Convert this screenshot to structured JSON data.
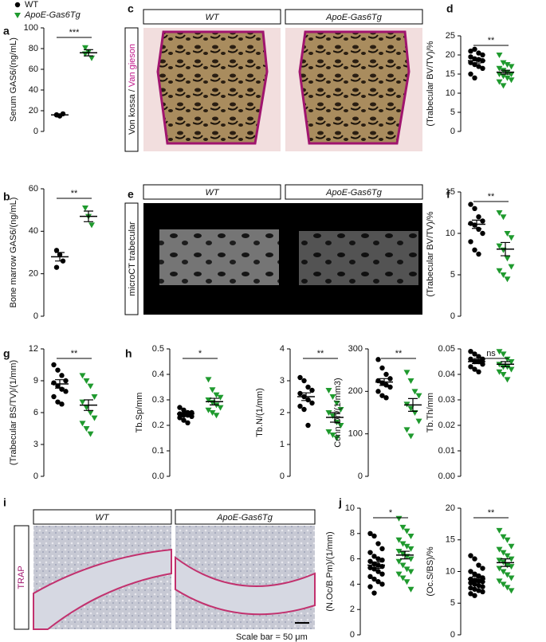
{
  "chart_data": [
    {
      "type": "dotplot",
      "panel": "a",
      "legend": "top-left",
      "ylabel": "Serum GAS6/(ng/mL)",
      "ylim": [
        0,
        100
      ],
      "yticks": [
        0,
        20,
        40,
        60,
        80,
        100
      ],
      "significance": "***",
      "series": [
        {
          "name": "WT",
          "color": "#000000",
          "marker": "circle",
          "values": [
            16,
            15,
            17,
            16,
            15
          ],
          "mean": 16,
          "sem": 0.5
        },
        {
          "name": "ApoE-Gas6Tg",
          "color": "#1f9a2e",
          "marker": "triangle",
          "values": [
            81,
            77,
            71,
            75
          ],
          "mean": 76,
          "sem": 3
        }
      ]
    },
    {
      "type": "dotplot",
      "panel": "b",
      "ylabel": "Bone marrow GAS6/(ng/mL)",
      "ylim": [
        0,
        60
      ],
      "yticks": [
        0,
        20,
        40,
        60
      ],
      "significance": "**",
      "series": [
        {
          "color": "#000000",
          "marker": "circle",
          "values": [
            31,
            29,
            26,
            23
          ],
          "mean": 28,
          "sem": 2
        },
        {
          "color": "#1f9a2e",
          "marker": "triangle",
          "values": [
            51,
            47,
            43
          ],
          "mean": 47,
          "sem": 2.5
        }
      ]
    },
    {
      "type": "dotplot",
      "panel": "d",
      "ylabel": "(Trabecular BV/TV)/%",
      "ylim": [
        0,
        25
      ],
      "yticks": [
        0,
        5,
        10,
        15,
        20,
        25
      ],
      "significance": "**",
      "series": [
        {
          "color": "#000000",
          "marker": "circle",
          "values": [
            21,
            21.5,
            20.5,
            20,
            19.5,
            19,
            18.8,
            18.5,
            18,
            17.5,
            17,
            16.5,
            15,
            14
          ],
          "mean": 18.5,
          "sem": 0.6
        },
        {
          "color": "#1f9a2e",
          "marker": "triangle",
          "values": [
            20,
            18,
            17.5,
            17,
            16.5,
            16,
            15.5,
            15,
            15,
            14.5,
            14,
            13.5,
            13,
            12
          ],
          "mean": 15.5,
          "sem": 0.5
        }
      ]
    },
    {
      "type": "dotplot",
      "panel": "f",
      "ylabel": "(Trabecular BV/TV)/%",
      "ylim": [
        0,
        15
      ],
      "yticks": [
        0,
        5,
        10,
        15
      ],
      "significance": "**",
      "series": [
        {
          "color": "#000000",
          "marker": "circle",
          "values": [
            13.5,
            13,
            12,
            11.5,
            11.2,
            11,
            10.5,
            10,
            9,
            8,
            7.5
          ],
          "mean": 11.1,
          "sem": 0.5
        },
        {
          "color": "#1f9a2e",
          "marker": "triangle",
          "values": [
            12.5,
            12,
            10,
            9.5,
            8.5,
            8,
            7,
            6,
            5.5,
            5,
            4.5
          ],
          "mean": 8.1,
          "sem": 0.8
        }
      ]
    },
    {
      "type": "dotplot",
      "panel": "g",
      "ylabel": "(Trabecular BS/TV)/(1/mm)",
      "ylim": [
        0,
        12
      ],
      "yticks": [
        0,
        3,
        6,
        9,
        12
      ],
      "significance": "**",
      "series": [
        {
          "color": "#000000",
          "marker": "circle",
          "values": [
            10.5,
            10,
            9.5,
            9,
            8.8,
            8.5,
            8.2,
            8,
            7.5,
            7,
            6.8
          ],
          "mean": 8.7,
          "sem": 0.4
        },
        {
          "color": "#1f9a2e",
          "marker": "triangle",
          "values": [
            9.5,
            9,
            8.5,
            7.5,
            7,
            6.5,
            6,
            5.5,
            5,
            4.5,
            4
          ],
          "mean": 6.7,
          "sem": 0.5
        }
      ]
    },
    {
      "type": "dotplot",
      "panel": "h",
      "ylabel": "Tb.Sp/mm",
      "ylim": [
        0,
        0.5
      ],
      "yticks": [
        {
          "value": 0,
          "label": "0.0"
        },
        0.1,
        0.2,
        0.3,
        0.4,
        0.5
      ],
      "significance": "*",
      "series": [
        {
          "color": "#000000",
          "marker": "circle",
          "values": [
            0.27,
            0.26,
            0.25,
            0.25,
            0.245,
            0.24,
            0.24,
            0.235,
            0.23,
            0.22,
            0.21
          ],
          "mean": 0.245,
          "sem": 0.005
        },
        {
          "color": "#1f9a2e",
          "marker": "triangle",
          "values": [
            0.38,
            0.34,
            0.32,
            0.31,
            0.3,
            0.29,
            0.28,
            0.27,
            0.26,
            0.25,
            0.24
          ],
          "mean": 0.293,
          "sem": 0.013
        }
      ]
    },
    {
      "type": "dotplot",
      "ylabel": "Tb.N/(1/mm)",
      "ylim": [
        0,
        4
      ],
      "yticks": [
        0,
        1,
        2,
        3,
        4
      ],
      "significance": "**",
      "series": [
        {
          "color": "#000000",
          "marker": "circle",
          "values": [
            3.1,
            3,
            2.8,
            2.7,
            2.6,
            2.5,
            2.4,
            2.3,
            2.2,
            2.1,
            1.6
          ],
          "mean": 2.5,
          "sem": 0.12
        },
        {
          "color": "#1f9a2e",
          "marker": "triangle",
          "values": [
            2.7,
            2.5,
            2.3,
            2.1,
            2,
            1.9,
            1.7,
            1.6,
            1.4,
            1.3,
            1.2
          ],
          "mean": 1.85,
          "sem": 0.15
        }
      ]
    },
    {
      "type": "dotplot",
      "ylabel": "Conn.Dn/(1/mm3)",
      "ylim": [
        0,
        300
      ],
      "yticks": [
        0,
        100,
        200,
        300
      ],
      "significance": "**",
      "series": [
        {
          "color": "#000000",
          "marker": "circle",
          "values": [
            275,
            255,
            240,
            230,
            225,
            220,
            215,
            210,
            200,
            190,
            185
          ],
          "mean": 222,
          "sem": 8
        },
        {
          "color": "#1f9a2e",
          "marker": "triangle",
          "values": [
            245,
            225,
            200,
            190,
            170,
            160,
            150,
            130,
            110,
            95
          ],
          "mean": 168,
          "sem": 15
        }
      ]
    },
    {
      "type": "dotplot",
      "ylabel": "Tb.Th/mm",
      "ylim": [
        0,
        0.05
      ],
      "yticks": [
        {
          "value": 0,
          "label": "0.00"
        },
        0.01,
        0.02,
        0.03,
        0.04,
        0.05
      ],
      "significance": "ns",
      "series": [
        {
          "color": "#000000",
          "marker": "circle",
          "values": [
            0.049,
            0.048,
            0.047,
            0.046,
            0.046,
            0.045,
            0.045,
            0.044,
            0.043,
            0.042,
            0.041
          ],
          "mean": 0.045,
          "sem": 0.0008
        },
        {
          "color": "#1f9a2e",
          "marker": "triangle",
          "values": [
            0.049,
            0.048,
            0.046,
            0.045,
            0.044,
            0.043,
            0.043,
            0.042,
            0.041,
            0.04,
            0.038
          ],
          "mean": 0.044,
          "sem": 0.001
        }
      ]
    },
    {
      "type": "dotplot",
      "panel": "j",
      "ylabel": "(N.Oc/B.Pm)/(1/mm)",
      "ylim": [
        0,
        10
      ],
      "yticks": [
        0,
        2,
        4,
        6,
        8,
        10
      ],
      "significance": "*",
      "series": [
        {
          "color": "#000000",
          "marker": "circle",
          "values": [
            8,
            7.8,
            7.2,
            6.8,
            6.5,
            6.2,
            6,
            5.9,
            5.8,
            5.6,
            5.5,
            5.4,
            5.3,
            5.2,
            5,
            4.8,
            4.6,
            4.4,
            4.2,
            4,
            3.8,
            3.3
          ],
          "mean": 5.5,
          "sem": 0.25
        },
        {
          "color": "#1f9a2e",
          "marker": "triangle",
          "values": [
            9.2,
            8.5,
            8.2,
            7.8,
            7.5,
            7.2,
            7,
            6.8,
            6.6,
            6.4,
            6.2,
            6,
            5.8,
            5.5,
            5.2,
            5,
            4.8,
            4.5,
            4.2,
            3.6
          ],
          "mean": 6.3,
          "sem": 0.3
        }
      ]
    },
    {
      "type": "dotplot",
      "ylabel": "(Oc.S/BS)/%",
      "ylim": [
        0,
        20
      ],
      "yticks": [
        0,
        5,
        10,
        15,
        20
      ],
      "significance": "**",
      "series": [
        {
          "color": "#000000",
          "marker": "circle",
          "values": [
            12.5,
            12,
            11,
            10.5,
            10,
            9.6,
            9.3,
            9,
            8.8,
            8.6,
            8.5,
            8.4,
            8.2,
            8,
            7.8,
            7.6,
            7.4,
            7.2,
            7,
            6.8,
            6.5,
            6.2
          ],
          "mean": 8.8,
          "sem": 0.4
        },
        {
          "color": "#1f9a2e",
          "marker": "triangle",
          "values": [
            16.5,
            15.5,
            15,
            14,
            13.5,
            13,
            12.5,
            12,
            11.8,
            11.5,
            11,
            10.8,
            10.5,
            10,
            9.5,
            9,
            8.5,
            8,
            7.5,
            7
          ],
          "mean": 11.4,
          "sem": 0.6
        }
      ]
    }
  ],
  "images": {
    "c": {
      "panel": "c",
      "headers": [
        "WT",
        "ApoE-Gas6Tg"
      ],
      "side_label": [
        "Von kossa /",
        "Van gieson"
      ]
    },
    "e": {
      "panel": "e",
      "headers": [
        "WT",
        "ApoE-Gas6Tg"
      ],
      "side_label": "microCT trabecular"
    },
    "i": {
      "panel": "i",
      "headers": [
        "WT",
        "ApoE-Gas6Tg"
      ],
      "side_label": "TRAP",
      "scale_bar": "Scale bar = 50 μm"
    }
  }
}
